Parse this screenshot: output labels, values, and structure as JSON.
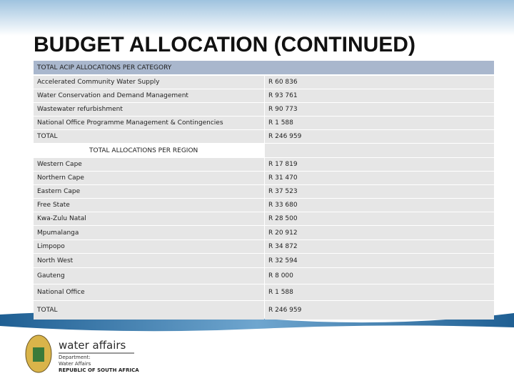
{
  "title": "BUDGET ALLOCATION (CONTINUED)",
  "table": {
    "header": "TOTAL ACIP ALLOCATIONS PER CATEGORY",
    "rows": [
      [
        "Accelerated Community Water Supply",
        "R 60 836"
      ],
      [
        "Water Conservation and Demand Management",
        "R 93 761"
      ],
      [
        "Wastewater refurbishment",
        "R 90 773"
      ],
      [
        "National Office Programme Management & Contingencies",
        "R 1 588"
      ],
      [
        "TOTAL",
        "R 246 959"
      ]
    ],
    "section_header": "TOTAL ALLOCATIONS PER REGION",
    "region_rows": [
      [
        "Western Cape",
        "R 17 819"
      ],
      [
        "Northern Cape",
        "R 31 470"
      ],
      [
        "Eastern Cape",
        "R 37 523"
      ],
      [
        "Free State",
        "R 33 680"
      ],
      [
        "Kwa-Zulu Natal",
        "R 28 500"
      ],
      [
        "Mpumalanga",
        "R 20 912"
      ],
      [
        "Limpopo",
        "R 34 872"
      ],
      [
        "North West",
        "R 32 594"
      ],
      [
        "Gauteng",
        "R 8 000"
      ],
      [
        "National Office",
        "R 1 588"
      ],
      [
        "TOTAL",
        "R 246 959"
      ]
    ]
  },
  "logo": {
    "brand": "water affairs",
    "line1": "Department:",
    "line2": "Water Affairs",
    "line3": "REPUBLIC OF SOUTH AFRICA"
  }
}
